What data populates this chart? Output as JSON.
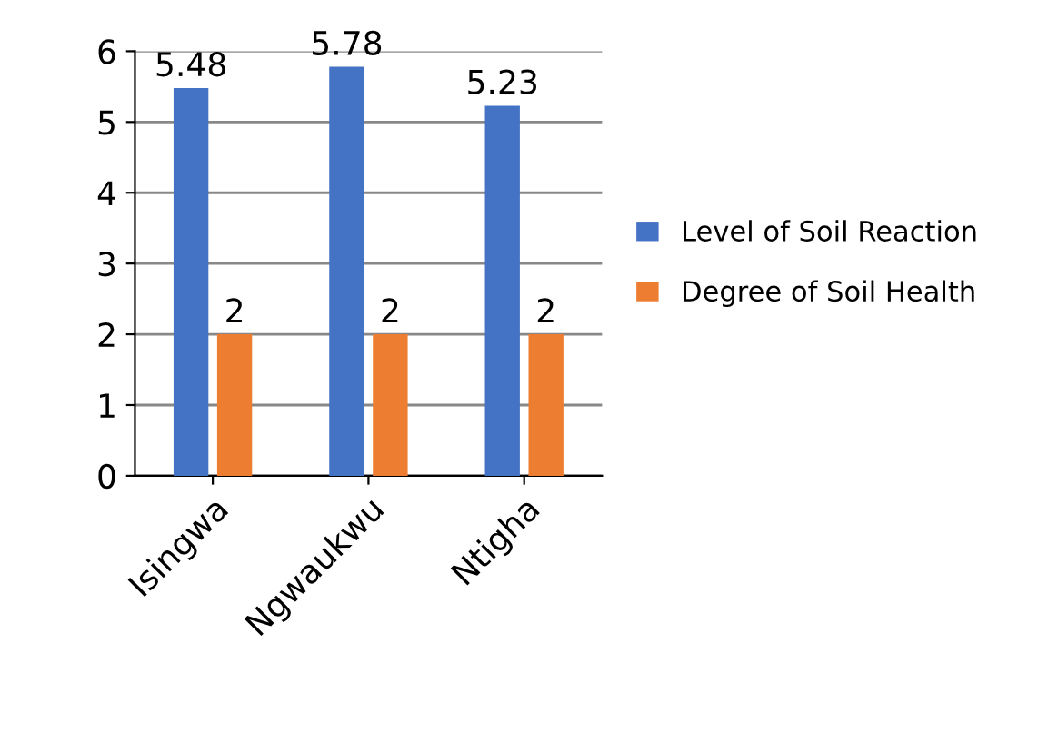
{
  "chart_data": {
    "type": "bar",
    "categories": [
      "Isingwa",
      "Ngwaukwu",
      "Ntigha"
    ],
    "series": [
      {
        "name": "Level of Soil Reaction",
        "color": "#4472c4",
        "values": [
          5.48,
          5.78,
          5.23
        ]
      },
      {
        "name": "Degree of Soil Health",
        "color": "#ed7d31",
        "values": [
          2,
          2,
          2
        ]
      }
    ],
    "ylim": [
      0,
      6
    ],
    "yticks": [
      0,
      1,
      2,
      3,
      4,
      5,
      6
    ],
    "grid": "y",
    "legend": "right",
    "data_labels": true
  }
}
